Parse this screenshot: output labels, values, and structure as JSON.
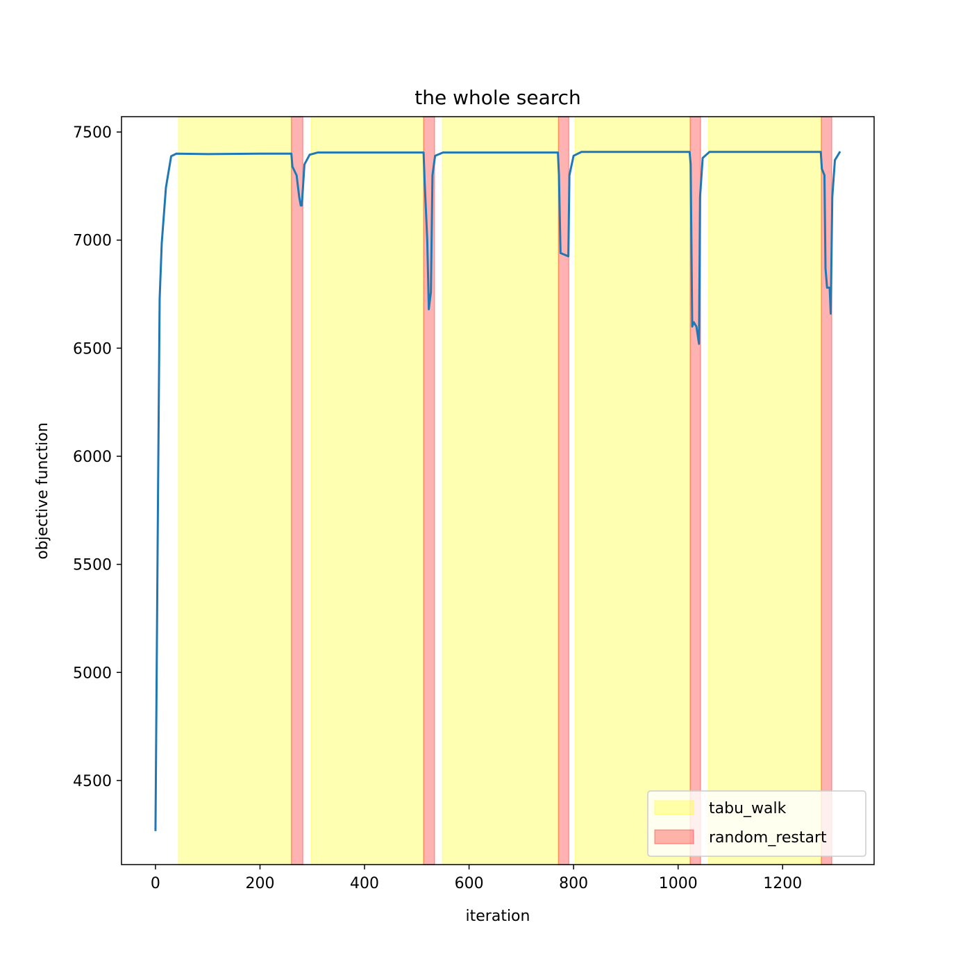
{
  "chart_data": {
    "type": "line",
    "title": "the whole search",
    "x_label": "iteration",
    "y_label": "objective function",
    "xlim": [
      -65,
      1375
    ],
    "xticks": [
      0,
      200,
      400,
      600,
      800,
      1000,
      1200
    ],
    "ylim": [
      4111,
      7571
    ],
    "yticks": [
      4500,
      5000,
      5500,
      6000,
      6500,
      7000,
      7500
    ],
    "legend": "lower right",
    "spans": [
      {
        "name": "tabu_walk",
        "color": "#ffff00",
        "ranges": [
          [
            44,
            260
          ],
          [
            298,
            513
          ],
          [
            549,
            771
          ],
          [
            803,
            1023
          ],
          [
            1058,
            1274
          ]
        ]
      },
      {
        "name": "random_restart",
        "color": "#ff0000",
        "ranges": [
          [
            260,
            282
          ],
          [
            513,
            534
          ],
          [
            771,
            791
          ],
          [
            1023,
            1043
          ],
          [
            1274,
            1294
          ]
        ]
      }
    ],
    "series": [
      {
        "color": "#1f77b4",
        "x": [
          0,
          5,
          8,
          12,
          20,
          30,
          40,
          100,
          200,
          260,
          262,
          270,
          275,
          278,
          280,
          285,
          295,
          310,
          400,
          513,
          515,
          520,
          523,
          527,
          530,
          535,
          550,
          650,
          770,
          772,
          775,
          785,
          790,
          792,
          800,
          815,
          900,
          1022,
          1024,
          1027,
          1030,
          1035,
          1040,
          1042,
          1047,
          1060,
          1150,
          1273,
          1275,
          1280,
          1282,
          1285,
          1290,
          1292,
          1295,
          1300,
          1310
        ],
        "values": [
          4266,
          5862,
          6729,
          6986,
          7243,
          7388,
          7400,
          7398,
          7400,
          7400,
          7340,
          7300,
          7200,
          7160,
          7160,
          7350,
          7395,
          7405,
          7405,
          7405,
          7270,
          7000,
          6680,
          6760,
          7300,
          7390,
          7405,
          7405,
          7405,
          7300,
          6940,
          6930,
          6925,
          7300,
          7390,
          7408,
          7408,
          7408,
          7350,
          6600,
          6620,
          6600,
          6520,
          7200,
          7380,
          7408,
          7408,
          7408,
          7330,
          7300,
          6870,
          6780,
          6780,
          6660,
          7200,
          7370,
          7410
        ]
      }
    ]
  }
}
